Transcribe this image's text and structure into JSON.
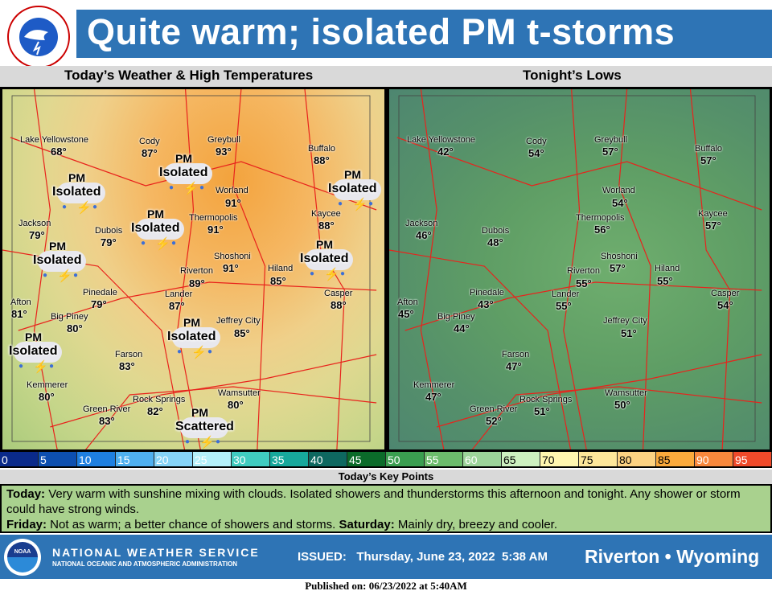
{
  "header": {
    "title": "Quite warm; isolated PM t-storms",
    "logo_text": "NATIONAL WEATHER SERVICE"
  },
  "panels": {
    "left_title": "Today’s Weather  & High Temperatures",
    "right_title": "Tonight’s Lows"
  },
  "cities": [
    {
      "name": "Lake Yellowstone",
      "high": "68°",
      "low": "42°"
    },
    {
      "name": "Cody",
      "high": "87°",
      "low": "54°"
    },
    {
      "name": "Greybull",
      "high": "93°",
      "low": "57°"
    },
    {
      "name": "Buffalo",
      "high": "88°",
      "low": "57°"
    },
    {
      "name": "Worland",
      "high": "91°",
      "low": "54°"
    },
    {
      "name": "Thermopolis",
      "high": "91°",
      "low": "56°"
    },
    {
      "name": "Kaycee",
      "high": "88°",
      "low": "57°"
    },
    {
      "name": "Jackson",
      "high": "79°",
      "low": "46°"
    },
    {
      "name": "Dubois",
      "high": "79°",
      "low": "48°"
    },
    {
      "name": "Shoshoni",
      "high": "91°",
      "low": "57°"
    },
    {
      "name": "Hiland",
      "high": "85°",
      "low": "55°"
    },
    {
      "name": "Riverton",
      "high": "89°",
      "low": "55°"
    },
    {
      "name": "Casper",
      "high": "88°",
      "low": "54°"
    },
    {
      "name": "Lander",
      "high": "87°",
      "low": "55°"
    },
    {
      "name": "Afton",
      "high": "81°",
      "low": "45°"
    },
    {
      "name": "Pinedale",
      "high": "79°",
      "low": "43°"
    },
    {
      "name": "Big Piney",
      "high": "80°",
      "low": "44°"
    },
    {
      "name": "Jeffrey City",
      "high": "85°",
      "low": "51°"
    },
    {
      "name": "Farson",
      "high": "83°",
      "low": "47°"
    },
    {
      "name": "Kemmerer",
      "high": "80°",
      "low": "47°"
    },
    {
      "name": "Green River",
      "high": "83°",
      "low": "52°"
    },
    {
      "name": "Rock Springs",
      "high": "82°",
      "low": "51°"
    },
    {
      "name": "Wamsutter",
      "high": "80°",
      "low": "50°"
    }
  ],
  "storms": [
    {
      "time": "PM",
      "coverage": "Isolated"
    },
    {
      "time": "PM",
      "coverage": "Isolated"
    },
    {
      "time": "PM",
      "coverage": "Isolated"
    },
    {
      "time": "PM",
      "coverage": "Isolated"
    },
    {
      "time": "PM",
      "coverage": "Isolated"
    },
    {
      "time": "PM",
      "coverage": "Isolated"
    },
    {
      "time": "PM",
      "coverage": "Isolated"
    },
    {
      "time": "PM",
      "coverage": "Isolated"
    },
    {
      "time": "PM",
      "coverage": "Scattered"
    }
  ],
  "legend": [
    {
      "label": "0",
      "color": "#0a2a8a"
    },
    {
      "label": "5",
      "color": "#0d4fb0"
    },
    {
      "label": "10",
      "color": "#1e7fe0"
    },
    {
      "label": "15",
      "color": "#4fb0f0"
    },
    {
      "label": "20",
      "color": "#86d4f8"
    },
    {
      "label": "25",
      "color": "#b4f0fa"
    },
    {
      "label": "30",
      "color": "#40ccc0"
    },
    {
      "label": "35",
      "color": "#17a89c"
    },
    {
      "label": "40",
      "color": "#0e6860"
    },
    {
      "label": "45",
      "color": "#0b6b2a"
    },
    {
      "label": "50",
      "color": "#3a9e50"
    },
    {
      "label": "55",
      "color": "#6cbc6c"
    },
    {
      "label": "60",
      "color": "#9cd49a"
    },
    {
      "label": "65",
      "color": "#cdf0c0"
    },
    {
      "label": "70",
      "color": "#fff6b0"
    },
    {
      "label": "75",
      "color": "#fde69a"
    },
    {
      "label": "80",
      "color": "#fcd282"
    },
    {
      "label": "85",
      "color": "#fbaa3c"
    },
    {
      "label": "90",
      "color": "#f8883c"
    },
    {
      "label": "95",
      "color": "#f04a2a"
    }
  ],
  "key_points": {
    "heading": "Today’s Key Points",
    "today_label": "Today:",
    "today_text": " Very warm with sunshine mixing with clouds. Isolated showers and thunderstorms this afternoon and tonight. Any shower or storm could have strong winds.",
    "friday_label": "Friday:",
    "friday_text": " Not as warm; a better chance of showers and storms. ",
    "saturday_label": "Saturday:",
    "saturday_text": " Mainly dry, breezy and cooler."
  },
  "footer": {
    "noaa_logo": "NOAA",
    "org": "NATIONAL WEATHER SERVICE",
    "org_sub": "NATIONAL OCEANIC AND ATMOSPHERIC ADMINISTRATION",
    "issued": "ISSUED:   Thursday, June 23, 2022  5:38 AM",
    "location": "Riverton • Wyoming"
  },
  "published": "Published on: 06/23/2022 at 5:40AM"
}
